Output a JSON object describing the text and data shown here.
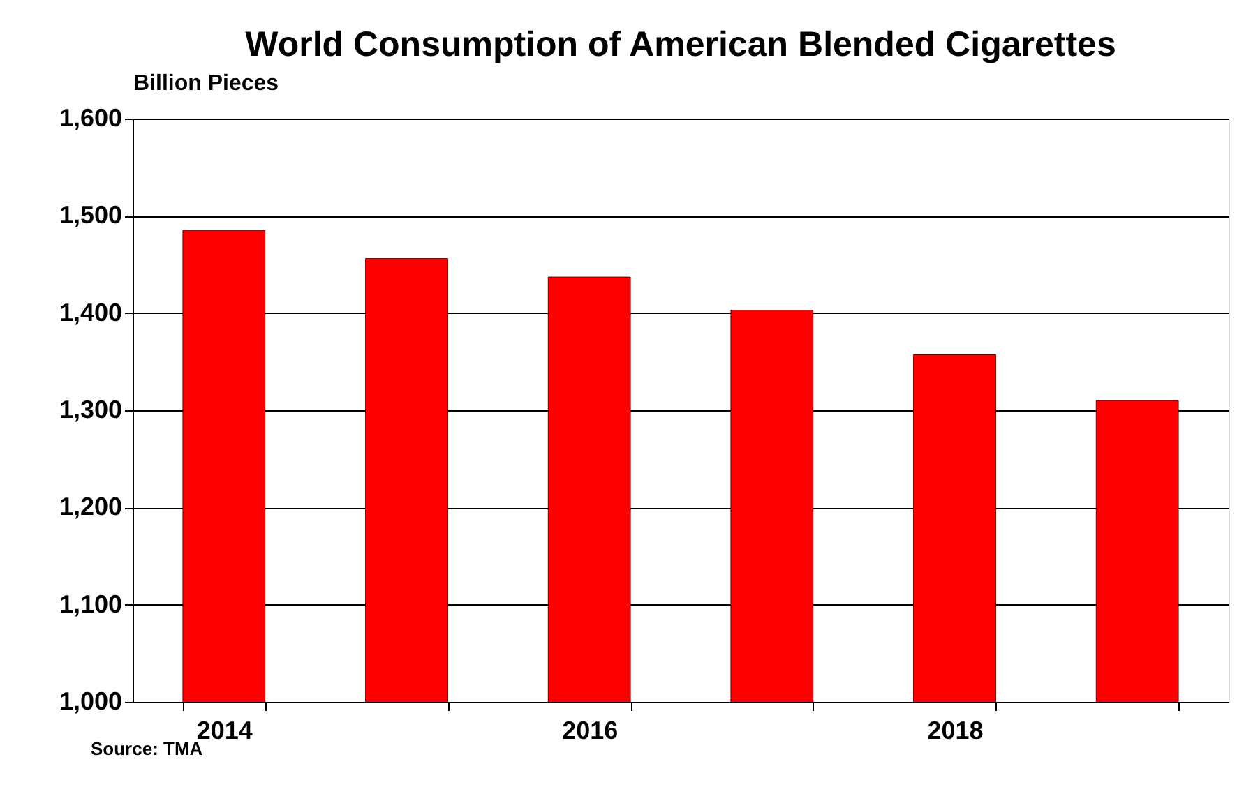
{
  "chart_data": {
    "type": "bar",
    "title": "World Consumption of American Blended Cigarettes",
    "ylabel": "Billion Pieces",
    "categories": [
      "2014",
      null,
      "2016",
      null,
      "2018",
      null
    ],
    "values": [
      1485,
      1456,
      1437,
      1403,
      1357,
      1310
    ],
    "color": "#ff0000",
    "ylim": [
      1000,
      1600
    ],
    "yticks": [
      {
        "value": 1000,
        "label": "1,000"
      },
      {
        "value": 1100,
        "label": "1,100"
      },
      {
        "value": 1200,
        "label": "1,200"
      },
      {
        "value": 1300,
        "label": "1,300"
      },
      {
        "value": 1400,
        "label": "1,400"
      },
      {
        "value": 1500,
        "label": "1,500"
      },
      {
        "value": 1600,
        "label": "1,600"
      }
    ],
    "grid": "y",
    "annotations": [
      "Source:  TMA"
    ]
  }
}
